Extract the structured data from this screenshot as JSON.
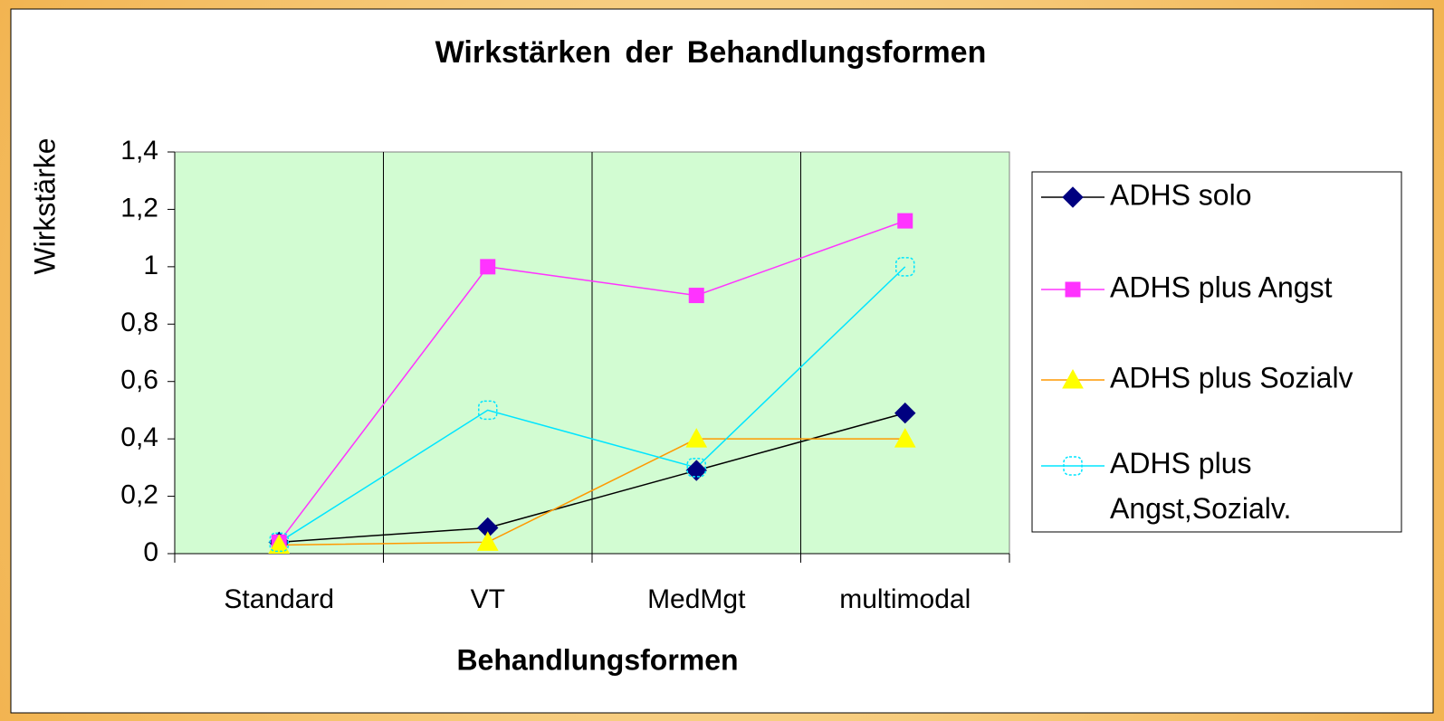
{
  "chart_data": {
    "type": "line",
    "title": "Wirkstärken der Behandlungsformen",
    "x_label": "Behandlungsformen",
    "y_label": "Wirkstärke",
    "categories": [
      "Standard",
      "VT",
      "MedMgt",
      "multimodal"
    ],
    "series": [
      {
        "name": "ADHS solo",
        "color": "#000080",
        "line_color": "#000000",
        "marker": "diamond",
        "values": [
          0.04,
          0.09,
          0.29,
          0.49
        ]
      },
      {
        "name": "ADHS plus Angst",
        "color": "#ff33ff",
        "line_color": "#ff33ff",
        "marker": "square",
        "values": [
          0.04,
          1.0,
          0.9,
          1.16
        ]
      },
      {
        "name": "ADHS plus Sozialv",
        "color": "#ffff00",
        "line_color": "#ff9900",
        "marker": "triangle",
        "values": [
          0.03,
          0.04,
          0.4,
          0.4
        ]
      },
      {
        "name": "ADHS plus Angst,Sozialv.",
        "color": "#00e5ff",
        "line_color": "#00e5ff",
        "marker": "open-square",
        "values": [
          0.04,
          0.5,
          0.3,
          1.0
        ]
      }
    ],
    "ylim": [
      0,
      1.4
    ],
    "yticks": [
      0,
      {
        "value": 0.2,
        "label": "0,2"
      },
      {
        "value": 0.4,
        "label": "0,4"
      },
      {
        "value": 0.6,
        "label": "0,6"
      },
      {
        "value": 0.8,
        "label": "0,8"
      },
      1,
      {
        "value": 1.2,
        "label": "1,2"
      },
      {
        "value": 1.4,
        "label": "1,4"
      }
    ],
    "plot_background": "#d2fcd2",
    "legend": "right"
  }
}
